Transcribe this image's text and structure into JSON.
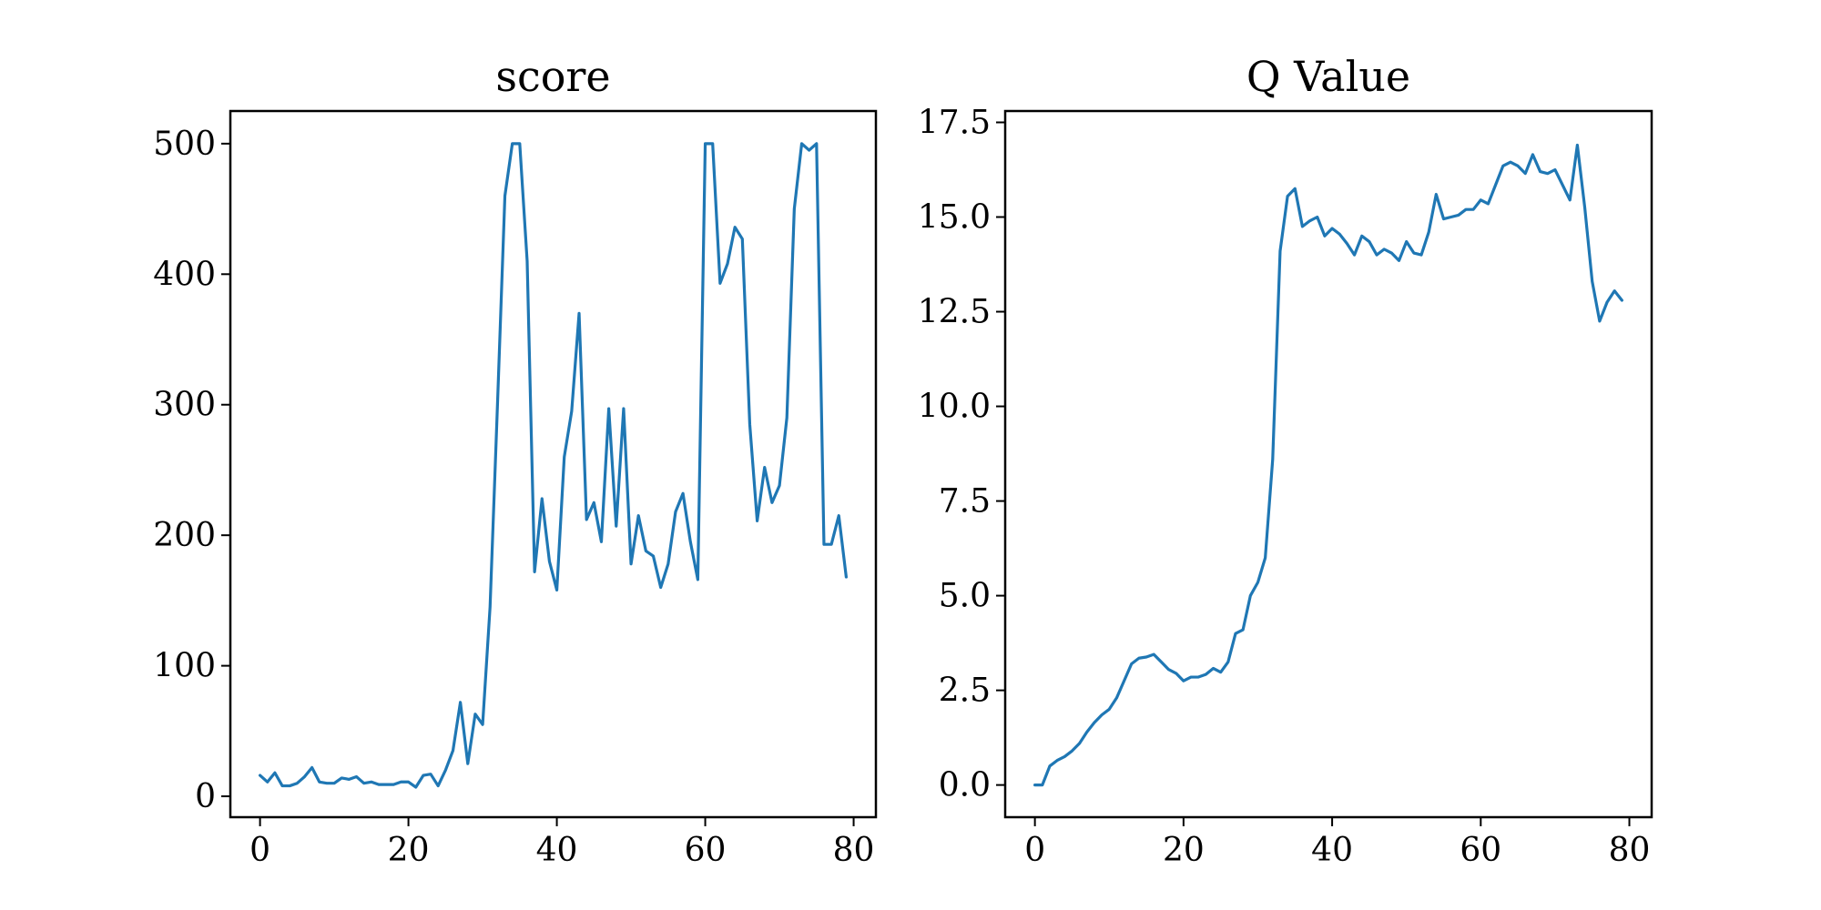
{
  "chart_data": [
    {
      "type": "line",
      "title": "score",
      "xlabel": "",
      "ylabel": "",
      "xlim": [
        -4,
        83
      ],
      "ylim": [
        -16,
        525
      ],
      "xticks": [
        0,
        20,
        40,
        60,
        80
      ],
      "yticks": [
        0,
        100,
        200,
        300,
        400,
        500
      ],
      "grid": false,
      "series": [
        {
          "color": "#1f77b4",
          "x": [
            0,
            1,
            2,
            3,
            4,
            5,
            6,
            7,
            8,
            9,
            10,
            11,
            12,
            13,
            14,
            15,
            16,
            17,
            18,
            19,
            20,
            21,
            22,
            23,
            24,
            25,
            26,
            27,
            28,
            29,
            30,
            31,
            32,
            33,
            34,
            35,
            36,
            37,
            38,
            39,
            40,
            41,
            42,
            43,
            44,
            45,
            46,
            47,
            48,
            49,
            50,
            51,
            52,
            53,
            54,
            55,
            56,
            57,
            58,
            59,
            60,
            61,
            62,
            63,
            64,
            65,
            66,
            67,
            68,
            69,
            70,
            71,
            72,
            73,
            74,
            75,
            76,
            77,
            78,
            79
          ],
          "y": [
            16,
            11,
            18,
            8,
            8,
            10,
            15,
            22,
            11,
            10,
            10,
            14,
            13,
            15,
            10,
            11,
            9,
            9,
            9,
            11,
            11,
            7,
            16,
            17,
            8,
            20,
            35,
            72,
            25,
            63,
            55,
            145,
            300,
            460,
            500,
            500,
            410,
            172,
            228,
            180,
            158,
            260,
            295,
            370,
            212,
            225,
            195,
            297,
            207,
            297,
            178,
            215,
            188,
            184,
            160,
            178,
            218,
            232,
            195,
            166,
            500,
            500,
            393,
            408,
            436,
            427,
            285,
            211,
            252,
            225,
            238,
            290,
            450,
            500,
            495,
            500,
            193,
            193,
            215,
            168
          ]
        }
      ]
    },
    {
      "type": "line",
      "title": "Q Value",
      "xlabel": "",
      "ylabel": "",
      "xlim": [
        -4,
        83
      ],
      "ylim": [
        -0.85,
        17.8
      ],
      "xticks": [
        0,
        20,
        40,
        60,
        80
      ],
      "yticks": [
        0.0,
        2.5,
        5.0,
        7.5,
        10.0,
        12.5,
        15.0,
        17.5
      ],
      "yticklabels": [
        "0.0",
        "2.5",
        "5.0",
        "7.5",
        "10.0",
        "12.5",
        "15.0",
        "17.5"
      ],
      "grid": false,
      "series": [
        {
          "color": "#1f77b4",
          "x": [
            0,
            1,
            2,
            3,
            4,
            5,
            6,
            7,
            8,
            9,
            10,
            11,
            12,
            13,
            14,
            15,
            16,
            17,
            18,
            19,
            20,
            21,
            22,
            23,
            24,
            25,
            26,
            27,
            28,
            29,
            30,
            31,
            32,
            33,
            34,
            35,
            36,
            37,
            38,
            39,
            40,
            41,
            42,
            43,
            44,
            45,
            46,
            47,
            48,
            49,
            50,
            51,
            52,
            53,
            54,
            55,
            56,
            57,
            58,
            59,
            60,
            61,
            62,
            63,
            64,
            65,
            66,
            67,
            68,
            69,
            70,
            71,
            72,
            73,
            74,
            75,
            76,
            77,
            78,
            79
          ],
          "y": [
            0.0,
            0.0,
            0.5,
            0.65,
            0.75,
            0.9,
            1.1,
            1.4,
            1.65,
            1.85,
            2.0,
            2.3,
            2.75,
            3.2,
            3.35,
            3.38,
            3.45,
            3.25,
            3.05,
            2.95,
            2.75,
            2.85,
            2.85,
            2.92,
            3.08,
            2.98,
            3.25,
            4.0,
            4.1,
            5.0,
            5.35,
            6.0,
            8.6,
            14.1,
            15.55,
            15.75,
            14.75,
            14.9,
            15.0,
            14.5,
            14.7,
            14.55,
            14.3,
            14.0,
            14.5,
            14.35,
            14.0,
            14.15,
            14.05,
            13.85,
            14.35,
            14.05,
            14.0,
            14.6,
            15.6,
            14.95,
            15.0,
            15.05,
            15.2,
            15.2,
            15.45,
            15.35,
            15.85,
            16.35,
            16.45,
            16.35,
            16.15,
            16.65,
            16.2,
            16.15,
            16.25,
            15.85,
            15.45,
            16.9,
            15.25,
            13.3,
            12.25,
            12.75,
            13.05,
            12.8
          ]
        }
      ]
    }
  ]
}
